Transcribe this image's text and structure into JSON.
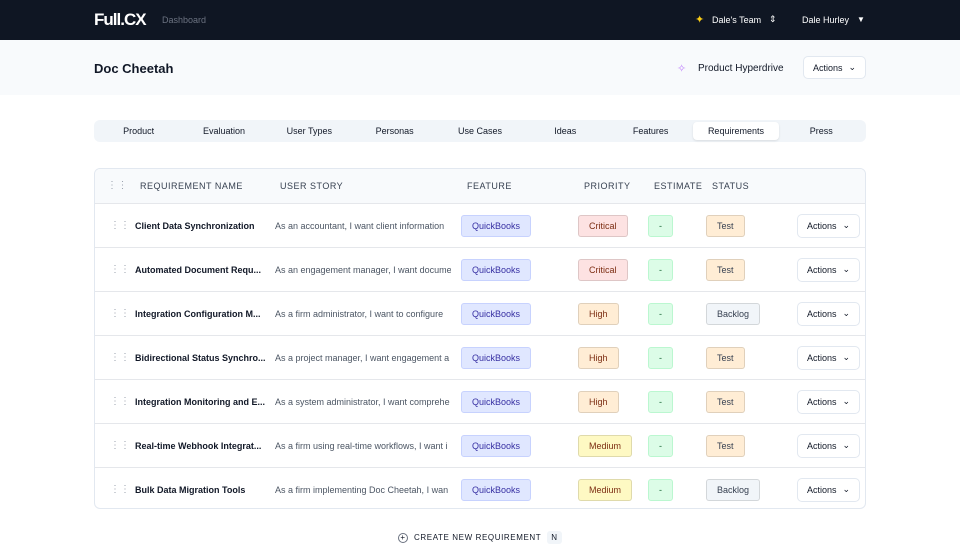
{
  "nav": {
    "logo": "Full.CX",
    "link": "Dashboard",
    "team": "Dale's Team",
    "user": "Dale Hurley"
  },
  "header": {
    "title": "Doc Cheetah",
    "hyperdrive": "Product Hyperdrive",
    "actions": "Actions"
  },
  "tabs": {
    "items": [
      "Product",
      "Evaluation",
      "User Types",
      "Personas",
      "Use Cases",
      "Ideas",
      "Features",
      "Requirements",
      "Press"
    ],
    "active": 7
  },
  "table": {
    "columns": [
      "REQUIREMENT NAME",
      "USER STORY",
      "FEATURE",
      "PRIORITY",
      "ESTIMATE",
      "STATUS"
    ],
    "rows": [
      {
        "name": "Client Data Synchronization",
        "story": "As an accountant, I want client information",
        "feature": "QuickBooks",
        "priority": "Critical",
        "priority_color": "#fde2e2",
        "estimate": "-",
        "status": "Test",
        "status_color": "#ffedd5",
        "action": "Actions"
      },
      {
        "name": "Automated Document Requ...",
        "story": "As an engagement manager, I want docume",
        "feature": "QuickBooks",
        "priority": "Critical",
        "priority_color": "#fde2e2",
        "estimate": "-",
        "status": "Test",
        "status_color": "#ffedd5",
        "action": "Actions"
      },
      {
        "name": "Integration Configuration M...",
        "story": "As a firm administrator, I want to configure",
        "feature": "QuickBooks",
        "priority": "High",
        "priority_color": "#ffedd5",
        "estimate": "-",
        "status": "Backlog",
        "status_color": "#f1f5f9",
        "action": "Actions"
      },
      {
        "name": "Bidirectional Status Synchro...",
        "story": "As a project manager, I want engagement a",
        "feature": "QuickBooks",
        "priority": "High",
        "priority_color": "#ffedd5",
        "estimate": "-",
        "status": "Test",
        "status_color": "#ffedd5",
        "action": "Actions"
      },
      {
        "name": "Integration Monitoring and E...",
        "story": "As a system administrator, I want comprehe",
        "feature": "QuickBooks",
        "priority": "High",
        "priority_color": "#ffedd5",
        "estimate": "-",
        "status": "Test",
        "status_color": "#ffedd5",
        "action": "Actions"
      },
      {
        "name": "Real-time Webhook Integrat...",
        "story": "As a firm using real-time workflows, I want i",
        "feature": "QuickBooks",
        "priority": "Medium",
        "priority_color": "#fef9c3",
        "estimate": "-",
        "status": "Test",
        "status_color": "#ffedd5",
        "action": "Actions"
      },
      {
        "name": "Bulk Data Migration Tools",
        "story": "As a firm implementing Doc Cheetah, I wan",
        "feature": "QuickBooks",
        "priority": "Medium",
        "priority_color": "#fef9c3",
        "estimate": "-",
        "status": "Backlog",
        "status_color": "#f1f5f9",
        "action": "Actions"
      }
    ]
  },
  "footer": {
    "create": "CREATE NEW REQUIREMENT",
    "shortcut": "N"
  }
}
